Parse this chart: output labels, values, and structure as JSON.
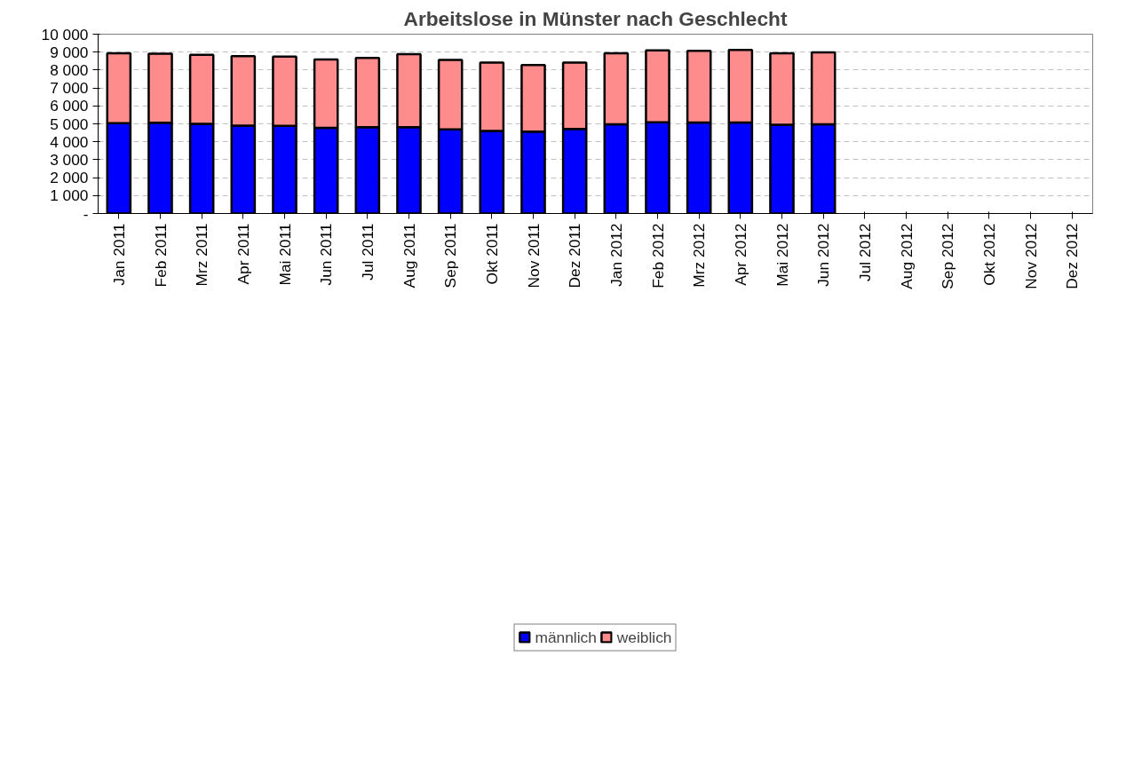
{
  "chart_data": {
    "type": "bar",
    "title": "Arbeitslose in Münster nach Geschlecht",
    "stacked": true,
    "categories": [
      "Jan 2011",
      "Feb 2011",
      "Mrz 2011",
      "Apr 2011",
      "Mai 2011",
      "Jun 2011",
      "Jul 2011",
      "Aug 2011",
      "Sep 2011",
      "Okt 2011",
      "Nov 2011",
      "Dez 2011",
      "Jan 2012",
      "Feb 2012",
      "Mrz 2012",
      "Apr 2012",
      "Mai 2012",
      "Jun 2012",
      "Jul 2012",
      "Aug 2012",
      "Sep 2012",
      "Okt 2012",
      "Nov 2012",
      "Dez 2012"
    ],
    "series": [
      {
        "name": "männlich",
        "color": "#0000ff",
        "values": [
          5040,
          5060,
          5000,
          4900,
          4890,
          4780,
          4820,
          4820,
          4690,
          4610,
          4570,
          4710,
          4970,
          5090,
          5070,
          5070,
          4950,
          4970,
          null,
          null,
          null,
          null,
          null,
          null
        ]
      },
      {
        "name": "weiblich",
        "color": "#ff8c8c",
        "values": [
          3890,
          3850,
          3850,
          3870,
          3860,
          3810,
          3860,
          4070,
          3880,
          3810,
          3710,
          3700,
          3970,
          4010,
          4000,
          4050,
          3990,
          4020,
          null,
          null,
          null,
          null,
          null,
          null
        ]
      }
    ],
    "ylim": [
      0,
      10000
    ],
    "yticks": [
      {
        "value": 0,
        "label": "-"
      },
      {
        "value": 1000,
        "label": "1 000"
      },
      {
        "value": 2000,
        "label": "2 000"
      },
      {
        "value": 3000,
        "label": "3 000"
      },
      {
        "value": 4000,
        "label": "4 000"
      },
      {
        "value": 5000,
        "label": "5 000"
      },
      {
        "value": 6000,
        "label": "6 000"
      },
      {
        "value": 7000,
        "label": "7 000"
      },
      {
        "value": 8000,
        "label": "8 000"
      },
      {
        "value": 9000,
        "label": "9 000"
      },
      {
        "value": 10000,
        "label": "10 000"
      }
    ],
    "grid": "y",
    "legend": "bottom"
  }
}
